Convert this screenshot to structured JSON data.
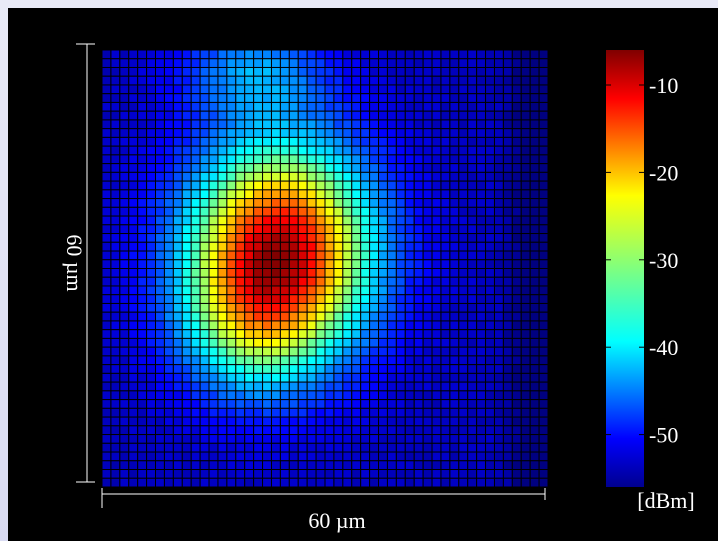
{
  "chart_data": {
    "type": "heatmap",
    "grid_size": 50,
    "xlabel": "60 µm",
    "ylabel": "60 µm",
    "colorbar": {
      "unit_label": "[dBm]",
      "range": [
        -56,
        -6
      ],
      "ticks": [
        -10,
        -20,
        -30,
        -40,
        -50
      ],
      "tick_labels": [
        "-10",
        "-20",
        "-30",
        "-40",
        "-50"
      ],
      "colormap": "jet"
    },
    "field_model": {
      "base": -53,
      "blobs": [
        {
          "cx": 0.4,
          "cy": 0.46,
          "sx": 0.2,
          "sy": 0.24,
          "amp": 44
        },
        {
          "cx": 0.32,
          "cy": 0.63,
          "sx": 0.15,
          "sy": 0.16,
          "amp": 10
        },
        {
          "cx": 0.34,
          "cy": 0.05,
          "sx": 0.16,
          "sy": 0.1,
          "amp": 10
        }
      ],
      "right_edge_dip": {
        "from_x": 0.88,
        "amp": -6
      }
    },
    "colors": {
      "background": "#000000",
      "grid_line": "#000000",
      "text": "#ffffff"
    }
  }
}
